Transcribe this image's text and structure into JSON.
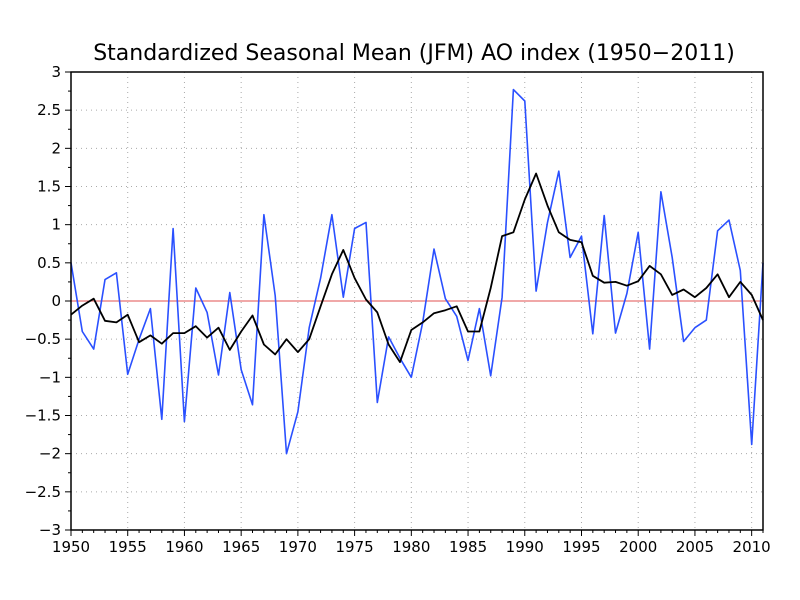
{
  "chart_data": {
    "type": "line",
    "title": "Standardized Seasonal Mean (JFM) AO index (1950−2011)",
    "xlabel": "",
    "ylabel": "",
    "xlim": [
      1950,
      2011
    ],
    "ylim": [
      -3,
      3
    ],
    "x_ticks": [
      1950,
      1955,
      1960,
      1965,
      1970,
      1975,
      1980,
      1985,
      1990,
      1995,
      2000,
      2005,
      2010
    ],
    "x_tick_labels": [
      "1950",
      "1955",
      "1960",
      "1965",
      "1970",
      "1975",
      "1980",
      "1985",
      "1990",
      "1995",
      "2000",
      "2005",
      "2010"
    ],
    "y_ticks": [
      -3,
      -2.5,
      -2,
      -1.5,
      -1,
      -0.5,
      0,
      0.5,
      1,
      1.5,
      2,
      2.5,
      3
    ],
    "y_tick_labels": [
      "−3",
      "−2.5",
      "−2",
      "−1.5",
      "−1",
      "−0.5",
      "0",
      "0.5",
      "1",
      "1.5",
      "2",
      "2.5",
      "3"
    ],
    "grid": true,
    "zero_line_color": "#e05050",
    "x": [
      1950,
      1951,
      1952,
      1953,
      1954,
      1955,
      1956,
      1957,
      1958,
      1959,
      1960,
      1961,
      1962,
      1963,
      1964,
      1965,
      1966,
      1967,
      1968,
      1969,
      1970,
      1971,
      1972,
      1973,
      1974,
      1975,
      1976,
      1977,
      1978,
      1979,
      1980,
      1981,
      1982,
      1983,
      1984,
      1985,
      1986,
      1987,
      1988,
      1989,
      1990,
      1991,
      1992,
      1993,
      1994,
      1995,
      1996,
      1997,
      1998,
      1999,
      2000,
      2001,
      2002,
      2003,
      2004,
      2005,
      2006,
      2007,
      2008,
      2009,
      2010,
      2011
    ],
    "series": [
      {
        "color": "#2a50ff",
        "values": [
          0.5,
          -0.4,
          -0.63,
          0.28,
          0.37,
          -0.96,
          -0.5,
          -0.1,
          -1.55,
          0.95,
          -1.58,
          0.17,
          -0.15,
          -0.97,
          0.11,
          -0.9,
          -1.36,
          1.13,
          0.07,
          -2.0,
          -1.45,
          -0.35,
          0.3,
          1.13,
          0.05,
          0.95,
          1.03,
          -1.33,
          -0.47,
          -0.75,
          -1.0,
          -0.28,
          0.68,
          0.03,
          -0.2,
          -0.78,
          -0.1,
          -0.98,
          0.05,
          2.77,
          2.62,
          0.13,
          1.03,
          1.7,
          0.57,
          0.85,
          -0.43,
          1.12,
          -0.42,
          0.1,
          0.9,
          -0.63,
          1.43,
          0.57,
          -0.53,
          -0.35,
          -0.25,
          0.92,
          1.06,
          0.4,
          -1.88,
          0.5
        ]
      },
      {
        "color": "#000000",
        "values": [
          -0.18,
          -0.06,
          0.03,
          -0.26,
          -0.28,
          -0.18,
          -0.54,
          -0.45,
          -0.56,
          -0.42,
          -0.42,
          -0.33,
          -0.48,
          -0.35,
          -0.64,
          -0.4,
          -0.19,
          -0.57,
          -0.7,
          -0.5,
          -0.67,
          -0.5,
          -0.07,
          0.35,
          0.67,
          0.3,
          0.02,
          -0.15,
          -0.57,
          -0.8,
          -0.38,
          -0.28,
          -0.16,
          -0.12,
          -0.07,
          -0.4,
          -0.4,
          0.17,
          0.85,
          0.9,
          1.33,
          1.67,
          1.25,
          0.9,
          0.8,
          0.77,
          0.33,
          0.24,
          0.25,
          0.2,
          0.26,
          0.46,
          0.35,
          0.08,
          0.15,
          0.05,
          0.17,
          0.35,
          0.05,
          0.25,
          0.08,
          -0.25
        ]
      }
    ]
  }
}
